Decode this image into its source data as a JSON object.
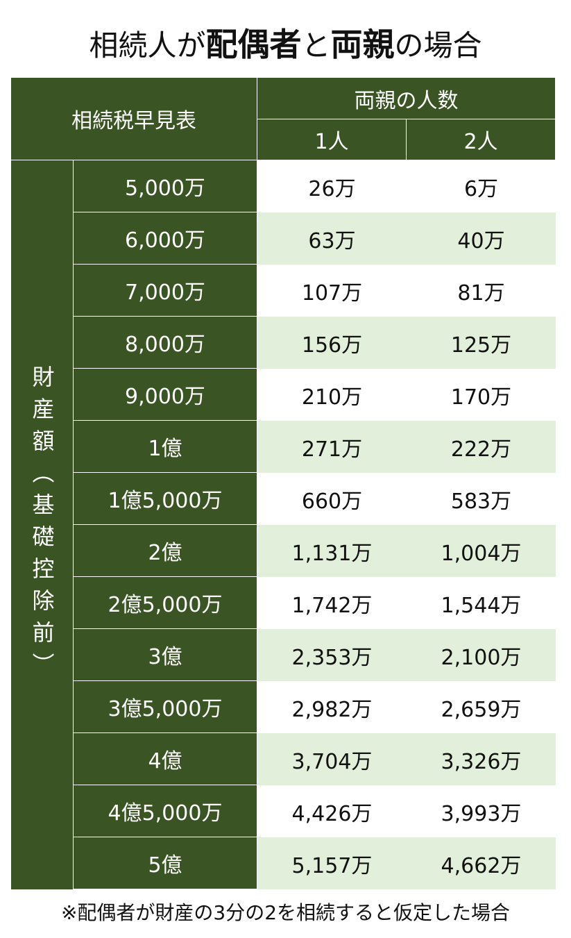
{
  "title": {
    "segments": [
      {
        "text": "相続人が",
        "bold": false
      },
      {
        "text": "配偶者",
        "bold": true
      },
      {
        "text": "と",
        "bold": false
      },
      {
        "text": "両親",
        "bold": true
      },
      {
        "text": "の場合",
        "bold": false
      }
    ]
  },
  "table": {
    "corner": "相続税早見表",
    "group_header": "両親の人数",
    "columns": [
      "1人",
      "2人"
    ],
    "row_group_label": "財産額（基礎控除前）",
    "rows": [
      [
        "5,000万",
        "26万",
        "6万"
      ],
      [
        "6,000万",
        "63万",
        "40万"
      ],
      [
        "7,000万",
        "107万",
        "81万"
      ],
      [
        "8,000万",
        "156万",
        "125万"
      ],
      [
        "9,000万",
        "210万",
        "170万"
      ],
      [
        "1億",
        "271万",
        "222万"
      ],
      [
        "1億5,000万",
        "660万",
        "583万"
      ],
      [
        "2億",
        "1,131万",
        "1,004万"
      ],
      [
        "2億5,000万",
        "1,742万",
        "1,544万"
      ],
      [
        "3億",
        "2,353万",
        "2,100万"
      ],
      [
        "3億5,000万",
        "2,982万",
        "2,659万"
      ],
      [
        "4億",
        "3,704万",
        "3,326万"
      ],
      [
        "4億5,000万",
        "4,426万",
        "3,993万"
      ],
      [
        "5億",
        "5,157万",
        "4,662万"
      ]
    ]
  },
  "footnote": "※配偶者が財産の3分の2を相続すると仮定した場合"
}
